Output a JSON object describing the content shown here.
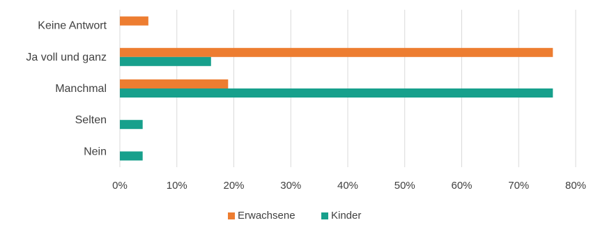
{
  "chart_data": {
    "type": "bar",
    "orientation": "horizontal",
    "categories": [
      "Keine Antwort",
      "Ja voll und ganz",
      "Manchmal",
      "Selten",
      "Nein"
    ],
    "series": [
      {
        "name": "Erwachsene",
        "color": "#ED7D31",
        "values": [
          0.05,
          0.76,
          0.19,
          0.0,
          0.0
        ]
      },
      {
        "name": "Kinder",
        "color": "#17A08C",
        "values": [
          0.0,
          0.16,
          0.76,
          0.04,
          0.04
        ]
      }
    ],
    "xlim": [
      0,
      0.8
    ],
    "xticks": [
      "0%",
      "10%",
      "20%",
      "30%",
      "40%",
      "50%",
      "60%",
      "70%",
      "80%"
    ],
    "grid": "vertical",
    "legend_position": "bottom"
  }
}
